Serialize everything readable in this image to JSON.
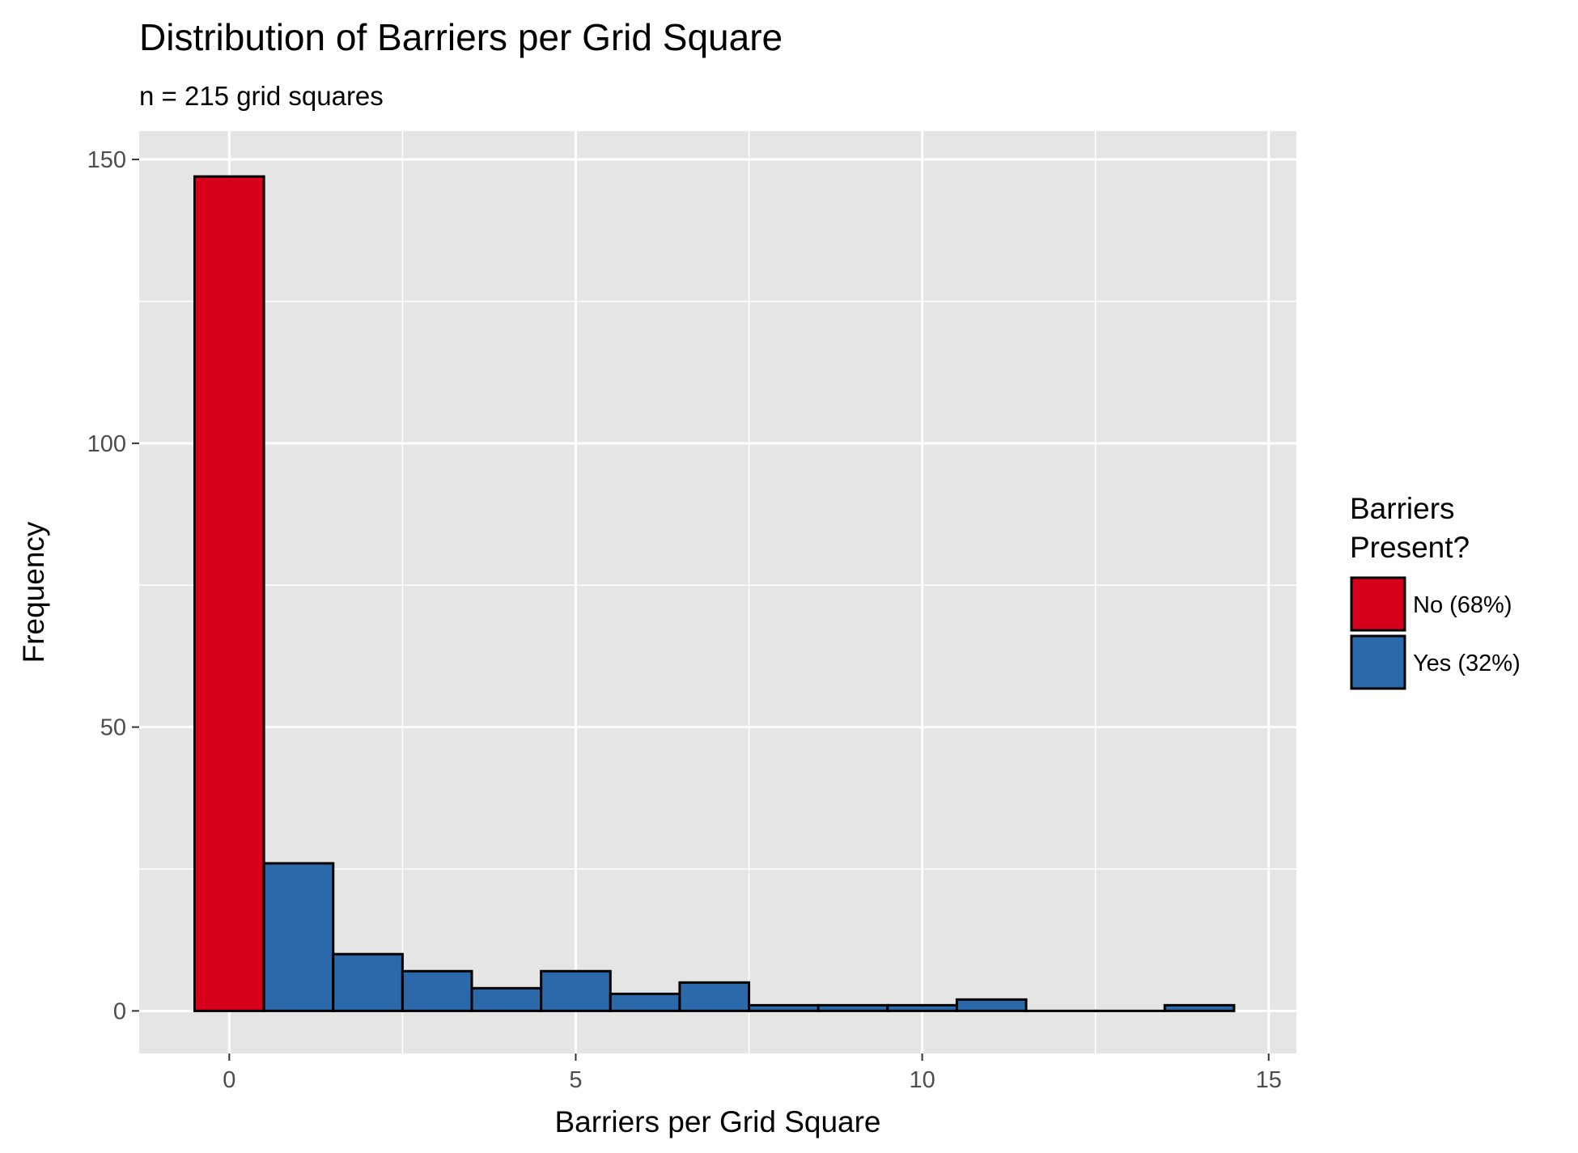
{
  "chart_data": {
    "type": "bar",
    "title": "Distribution of Barriers per Grid Square",
    "subtitle": "n = 215 grid squares",
    "xlabel": "Barriers per Grid Square",
    "ylabel": "Frequency",
    "xlim": [
      -1.3,
      15.4
    ],
    "ylim": [
      -7.5,
      155
    ],
    "x_ticks": [
      0,
      5,
      10,
      15
    ],
    "x_tick_labels": [
      "0",
      "5",
      "10",
      "15"
    ],
    "y_ticks": [
      0,
      50,
      100,
      150
    ],
    "y_tick_labels": [
      "0",
      "50",
      "100",
      "150"
    ],
    "grid": true,
    "bin_width": 1,
    "x": [
      0,
      1,
      2,
      3,
      4,
      5,
      6,
      7,
      8,
      9,
      10,
      11,
      12,
      13,
      14
    ],
    "values": [
      147,
      26,
      10,
      7,
      4,
      7,
      3,
      5,
      1,
      1,
      1,
      2,
      0,
      0,
      1
    ],
    "group": [
      "No (68%)",
      "Yes (32%)",
      "Yes (32%)",
      "Yes (32%)",
      "Yes (32%)",
      "Yes (32%)",
      "Yes (32%)",
      "Yes (32%)",
      "Yes (32%)",
      "Yes (32%)",
      "Yes (32%)",
      "Yes (32%)",
      "Yes (32%)",
      "Yes (32%)",
      "Yes (32%)"
    ],
    "legend": {
      "title_lines": [
        "Barriers",
        "Present?"
      ],
      "placement": "right",
      "entries": [
        {
          "label": "No (68%)",
          "color": "#d7001a"
        },
        {
          "label": "Yes (32%)",
          "color": "#2c69ab"
        }
      ]
    },
    "colors": {
      "panel_background": "#e5e5e5",
      "grid_major": "#ffffff",
      "bar_outline": "#000000"
    }
  }
}
